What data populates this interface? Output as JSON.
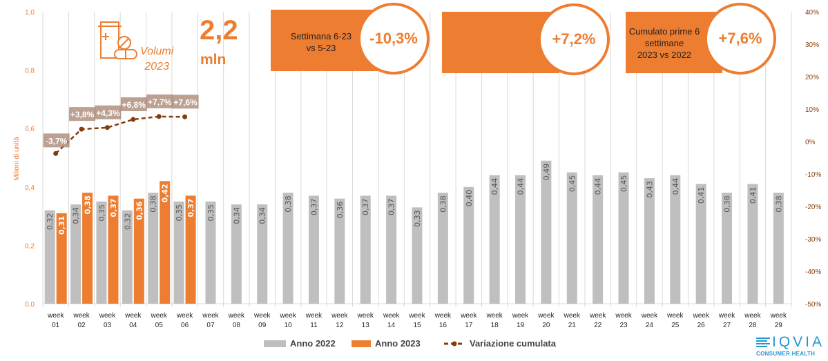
{
  "header": {
    "volumi_label_line1": "Volumi",
    "volumi_label_line2": "2023",
    "total_value": "2,2",
    "total_unit": "mln",
    "icon": "pill-bottle-icon"
  },
  "kpi_boxes": [
    {
      "label_line1": "Settimana  6-23",
      "label_line2": "vs 5-23",
      "label_line3": "",
      "value": "-10,3%"
    },
    {
      "label_line1": "",
      "label_line2": "",
      "label_line3": "",
      "value": "+7,2%"
    },
    {
      "label_line1": "Cumulato prime 6",
      "label_line2": "settimane",
      "label_line3": "2023  vs 2022",
      "value": "+7,6%"
    }
  ],
  "colors": {
    "accent": "#ED7D31",
    "bar2022": "#BFBFBF",
    "line": "#843C0C",
    "grid": "#D9D9D9",
    "logo": "#2196D3"
  },
  "logo": {
    "name": "IQVIA",
    "subtitle": "CONSUMER HEALTH"
  },
  "chart_data": {
    "type": "bar",
    "title": "",
    "xlabel": "",
    "ylabel": "Milioni di unità",
    "y2label": "",
    "ylim": [
      0,
      1.0
    ],
    "y2lim": [
      -0.5,
      0.4
    ],
    "yticks": [
      "0,0",
      "0,2",
      "0,4",
      "0,6",
      "0,8",
      "1,0"
    ],
    "y2ticks": [
      "-50%",
      "-40%",
      "-30%",
      "-20%",
      "-10%",
      "0%",
      "10%",
      "20%",
      "30%",
      "40%"
    ],
    "grid": true,
    "legend_position": "bottom",
    "categories": [
      "week 01",
      "week 02",
      "week 03",
      "week 04",
      "week 05",
      "week 06",
      "week 07",
      "week 08",
      "week 09",
      "week 10",
      "week 11",
      "week 12",
      "week 13",
      "week 14",
      "week 15",
      "week 16",
      "week 17",
      "week 18",
      "week 19",
      "week 20",
      "week 21",
      "week 22",
      "week 23",
      "week 24",
      "week 25",
      "week 26",
      "week 27",
      "week 28",
      "week 29"
    ],
    "series": [
      {
        "name": "Anno 2022",
        "type": "bar",
        "values": [
          0.32,
          0.34,
          0.35,
          0.32,
          0.38,
          0.35,
          0.35,
          0.34,
          0.34,
          0.38,
          0.37,
          0.36,
          0.37,
          0.37,
          0.33,
          0.38,
          0.4,
          0.44,
          0.44,
          0.49,
          0.45,
          0.44,
          0.45,
          0.43,
          0.44,
          0.41,
          0.38,
          0.41,
          0.38
        ],
        "labels": [
          "0,32",
          "0,34",
          "0,35",
          "0,32",
          "0,38",
          "0,35",
          "0,35",
          "0,34",
          "0,34",
          "0,38",
          "0,37",
          "0,36",
          "0,37",
          "0,37",
          "0,33",
          "0,38",
          "0,40",
          "0,44",
          "0,44",
          "0,49",
          "0,45",
          "0,44",
          "0,45",
          "0,43",
          "0,44",
          "0,41",
          "0,38",
          "0,41",
          "0,38"
        ]
      },
      {
        "name": "Anno 2023",
        "type": "bar",
        "values": [
          0.31,
          0.38,
          0.37,
          0.36,
          0.42,
          0.37
        ],
        "labels": [
          "0,31",
          "0,38",
          "0,37",
          "0,36",
          "0,42",
          "0,37"
        ]
      },
      {
        "name": "Variazione cumulata",
        "type": "line",
        "axis": "right",
        "values": [
          -0.037,
          0.038,
          0.043,
          0.068,
          0.077,
          0.076
        ],
        "labels": [
          "-3,7%",
          "+3,8%",
          "+4,3%",
          "+6,8%",
          "+7,7%",
          "+7,6%"
        ]
      }
    ]
  }
}
